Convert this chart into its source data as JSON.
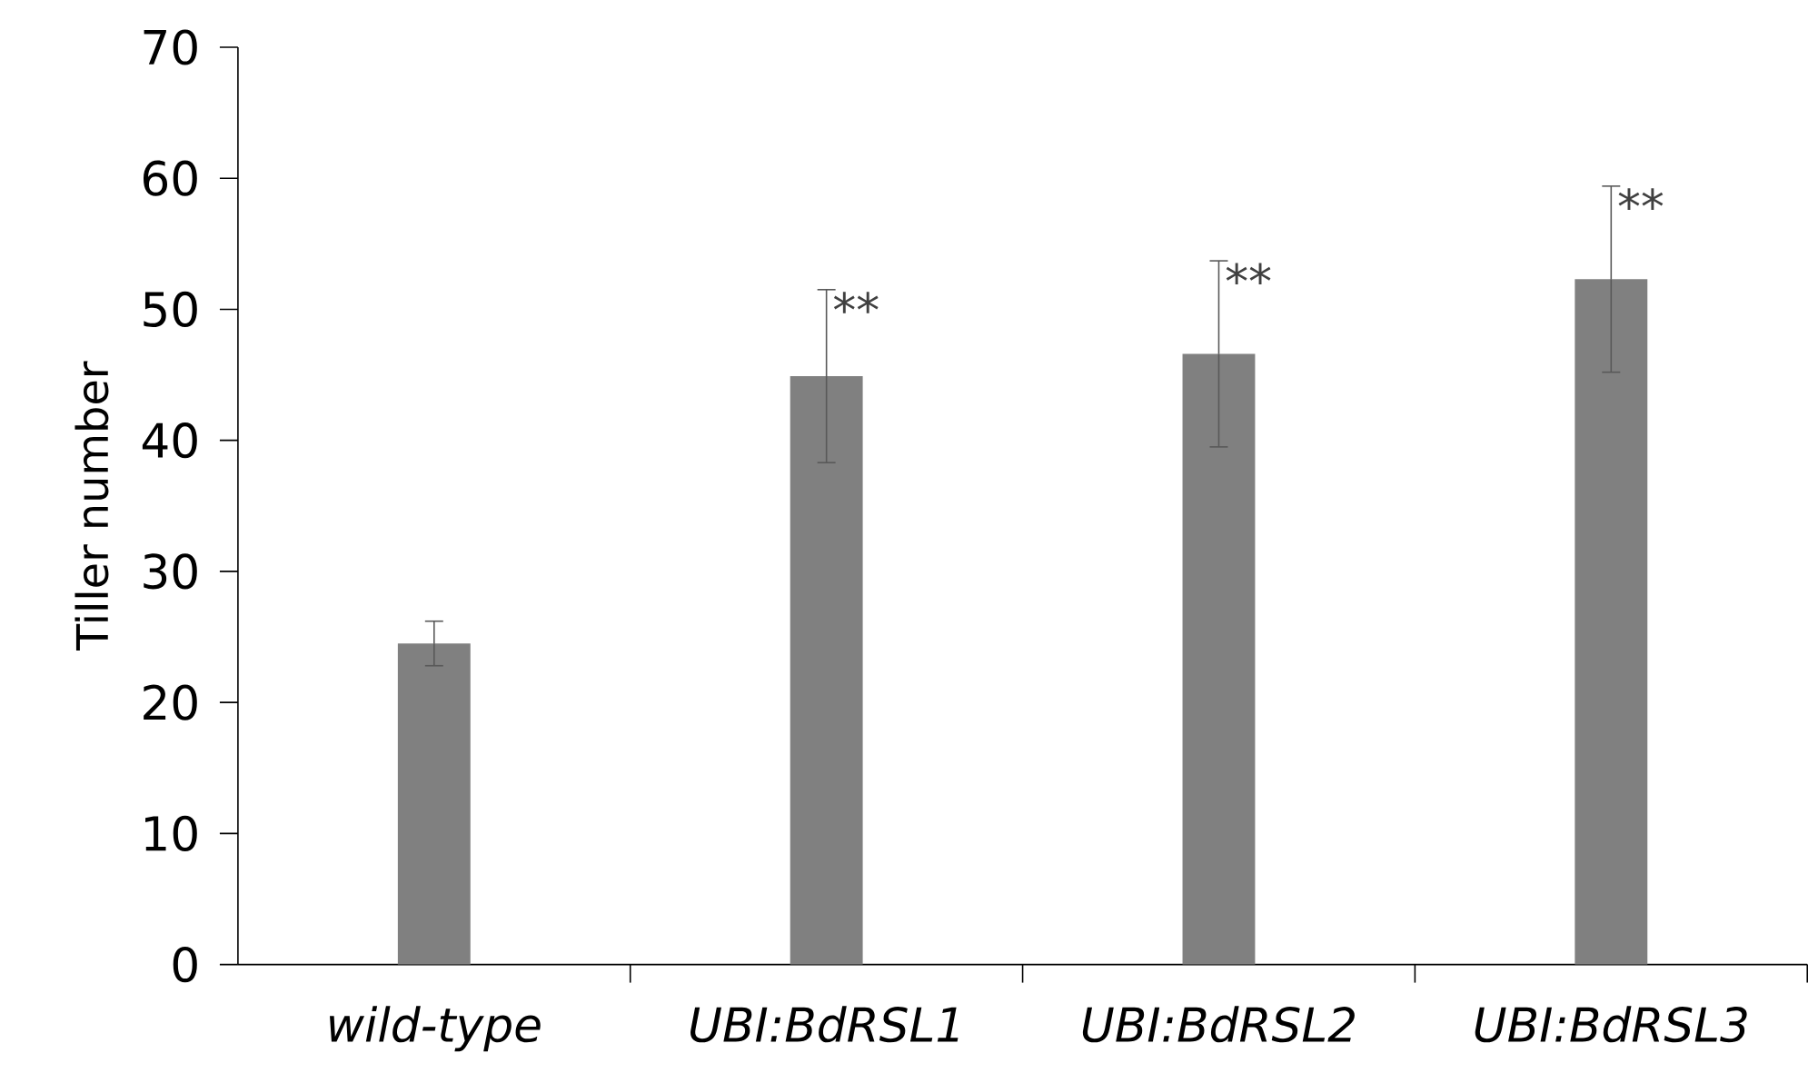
{
  "chart_data": {
    "type": "bar",
    "ylabel": "Tiller number",
    "categories": [
      "wild-type",
      "UBI:BdRSL1",
      "UBI:BdRSL2",
      "UBI:BdRSL3"
    ],
    "values": [
      24.5,
      44.9,
      46.6,
      52.3
    ],
    "errors": [
      1.7,
      6.6,
      7.1,
      7.1
    ],
    "color": "#808080",
    "ylim": [
      0,
      70
    ],
    "yticks": [
      0,
      10,
      20,
      30,
      40,
      50,
      60,
      70
    ],
    "annotations": [
      {
        "text": "**",
        "x": "UBI:BdRSL1",
        "y": 51.5
      },
      {
        "text": "**",
        "x": "UBI:BdRSL2",
        "y": 53.7
      },
      {
        "text": "**",
        "x": "UBI:BdRSL3",
        "y": 59.4
      }
    ]
  }
}
